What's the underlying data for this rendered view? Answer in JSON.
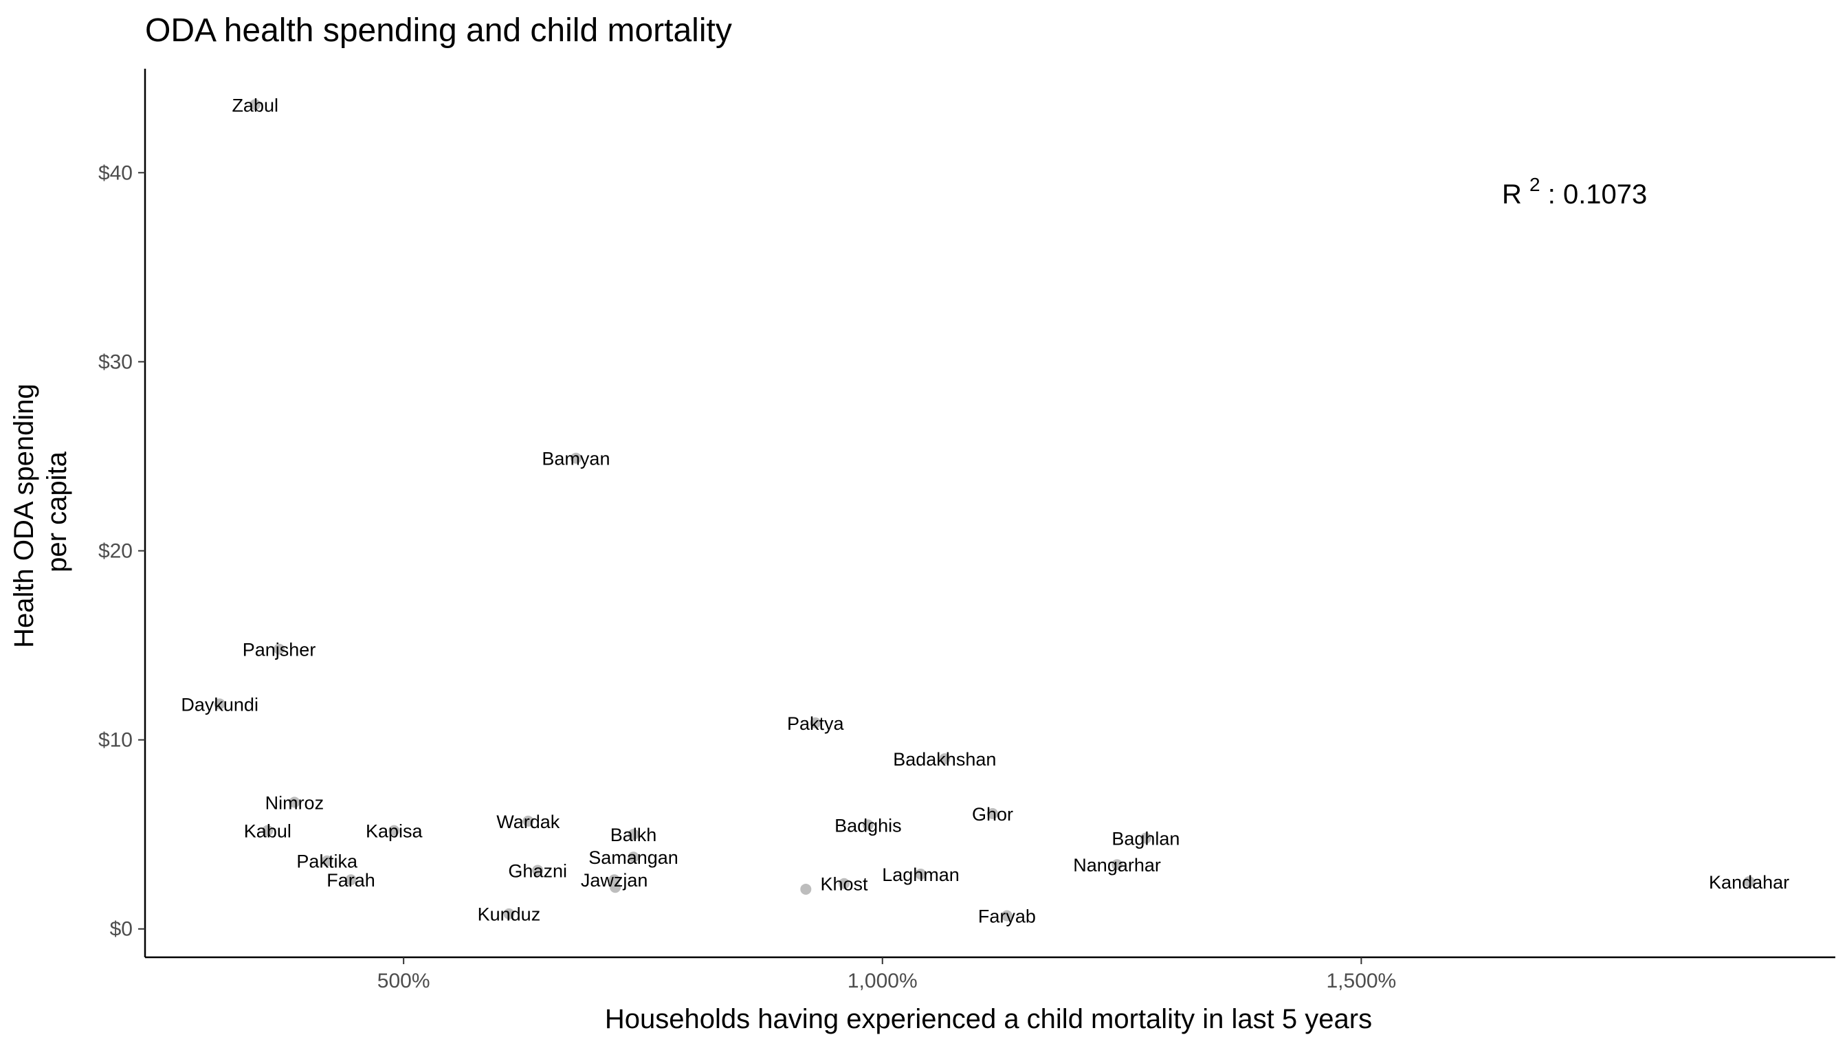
{
  "chart_data": {
    "type": "scatter",
    "title": "ODA health spending and child mortality",
    "xlabel": "Households having experienced a child mortality in last 5 years",
    "ylabel_lines": [
      "Health ODA spending",
      "per capita"
    ],
    "xlim": [
      230,
      1995
    ],
    "ylim": [
      -1.5,
      45.5
    ],
    "x_ticks": [
      500,
      1000,
      1500
    ],
    "x_tick_labels": [
      "500%",
      "1,000%",
      "1,500%"
    ],
    "y_ticks": [
      0,
      10,
      20,
      30,
      40
    ],
    "y_tick_labels": [
      "$0",
      "$10",
      "$20",
      "$30",
      "$40"
    ],
    "grid": false,
    "point_color": "#bdbdbd",
    "annotation": {
      "prefix": "R",
      "superscript": "2",
      "value": ": 0.1073"
    },
    "points": [
      {
        "label": "Zabul",
        "x": 345,
        "y": 43.6
      },
      {
        "label": "Bamyan",
        "x": 680,
        "y": 24.9
      },
      {
        "label": "Panjsher",
        "x": 370,
        "y": 14.8
      },
      {
        "label": "Daykundi",
        "x": 308,
        "y": 11.9
      },
      {
        "label": "Paktya",
        "x": 930,
        "y": 10.9
      },
      {
        "label": "Badakhshan",
        "x": 1065,
        "y": 9.0
      },
      {
        "label": "Nimroz",
        "x": 386,
        "y": 6.7
      },
      {
        "label": "Ghor",
        "x": 1115,
        "y": 6.1
      },
      {
        "label": "Wardak",
        "x": 630,
        "y": 5.7
      },
      {
        "label": "Badghis",
        "x": 985,
        "y": 5.5
      },
      {
        "label": "Kabul",
        "x": 358,
        "y": 5.2
      },
      {
        "label": "Kapisa",
        "x": 490,
        "y": 5.2
      },
      {
        "label": "Balkh",
        "x": 740,
        "y": 5.0
      },
      {
        "label": "Baghlan",
        "x": 1275,
        "y": 4.8
      },
      {
        "label": "Samangan",
        "x": 740,
        "y": 3.8
      },
      {
        "label": "Paktika",
        "x": 420,
        "y": 3.6
      },
      {
        "label": "Nangarhar",
        "x": 1245,
        "y": 3.4
      },
      {
        "label": "Ghazni",
        "x": 640,
        "y": 3.1
      },
      {
        "label": "Laghman",
        "x": 1040,
        "y": 2.9
      },
      {
        "label": "Jawzjan",
        "x": 720,
        "y": 2.6
      },
      {
        "label": "Farah",
        "x": 445,
        "y": 2.6
      },
      {
        "label": "Kandahar",
        "x": 1905,
        "y": 2.5
      },
      {
        "label": "Khost",
        "x": 960,
        "y": 2.4
      },
      {
        "label": "",
        "x": 920,
        "y": 2.1
      },
      {
        "label": "",
        "x": 721,
        "y": 2.2
      },
      {
        "label": "Kunduz",
        "x": 610,
        "y": 0.8
      },
      {
        "label": "Faryab",
        "x": 1130,
        "y": 0.7
      }
    ]
  }
}
